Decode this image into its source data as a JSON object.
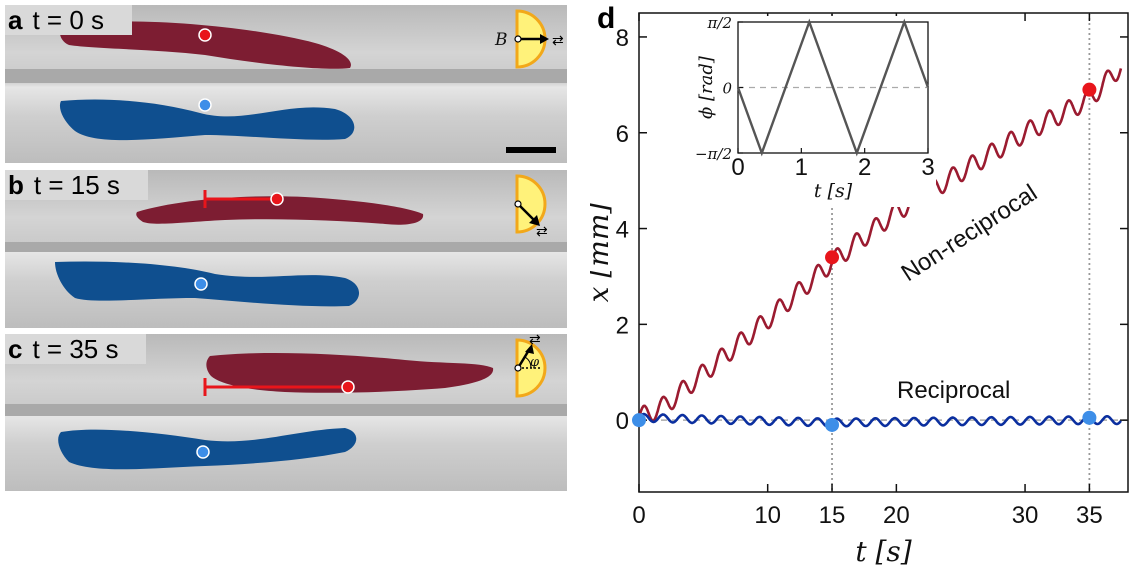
{
  "panels": [
    {
      "letter": "a",
      "time": "t = 0 s",
      "field_symbol": "B"
    },
    {
      "letter": "b",
      "time": "t = 15 s"
    },
    {
      "letter": "c",
      "time": "t = 35 s",
      "angle_symbol": "φ"
    }
  ],
  "colors": {
    "nonreciprocal": "#9b1b30",
    "reciprocal": "#0b2f9f",
    "red_point": "#e8151b",
    "blue_point": "#3d8ee8",
    "magnet_yellow": "#fff27a",
    "magnet_edge": "#f2a81a",
    "robot_red": "#7d1d32",
    "robot_blue": "#0f4f8f",
    "scale_bar": "#000000"
  },
  "chart_data": {
    "type": "line",
    "panel_letter": "d",
    "xlabel": "t [s]",
    "ylabel": "x [mm]",
    "xlim": [
      0,
      38
    ],
    "ylim": [
      -1.5,
      8.5
    ],
    "xticks": [
      0,
      10,
      15,
      20,
      30,
      35
    ],
    "yticks": [
      0,
      2,
      4,
      6,
      8
    ],
    "series": [
      {
        "name": "Non-reciprocal",
        "trend": [
          [
            0,
            0.05
          ],
          [
            2,
            0.3
          ],
          [
            10,
            2.1
          ],
          [
            15,
            3.3
          ],
          [
            20,
            4.35
          ],
          [
            30,
            6.0
          ],
          [
            35,
            6.7
          ],
          [
            37.5,
            7.4
          ]
        ],
        "oscillation_amplitude": 0.2,
        "oscillation_period_s": 1.5
      },
      {
        "name": "Reciprocal",
        "trend": [
          [
            0,
            0.05
          ],
          [
            15,
            -0.05
          ],
          [
            35,
            0.0
          ],
          [
            37.5,
            0.0
          ]
        ],
        "oscillation_amplitude": 0.08,
        "oscillation_period_s": 1.5
      }
    ],
    "markers": [
      {
        "series": "Non-reciprocal",
        "x": 15,
        "y": 3.4
      },
      {
        "series": "Non-reciprocal",
        "x": 35,
        "y": 6.9
      },
      {
        "series": "Reciprocal",
        "x": 0,
        "y": 0.0
      },
      {
        "series": "Reciprocal",
        "x": 15,
        "y": -0.1
      },
      {
        "series": "Reciprocal",
        "x": 35,
        "y": 0.05
      }
    ],
    "vertical_guides": [
      15,
      35
    ],
    "zero_line": true,
    "inset": {
      "xlabel": "t [s]",
      "ylabel": "ϕ [rad]",
      "xlim": [
        0,
        3
      ],
      "ylim": [
        -1.5708,
        1.5708
      ],
      "xticks": [
        0,
        1,
        2,
        3
      ],
      "ytick_labels": [
        "π/2",
        "0",
        "−π/2"
      ],
      "series": [
        {
          "x": [
            0,
            0.375,
            1.125,
            1.875,
            2.625,
            3.0
          ],
          "y": [
            0,
            -1.5708,
            1.5708,
            -1.5708,
            1.5708,
            0
          ]
        }
      ]
    }
  }
}
